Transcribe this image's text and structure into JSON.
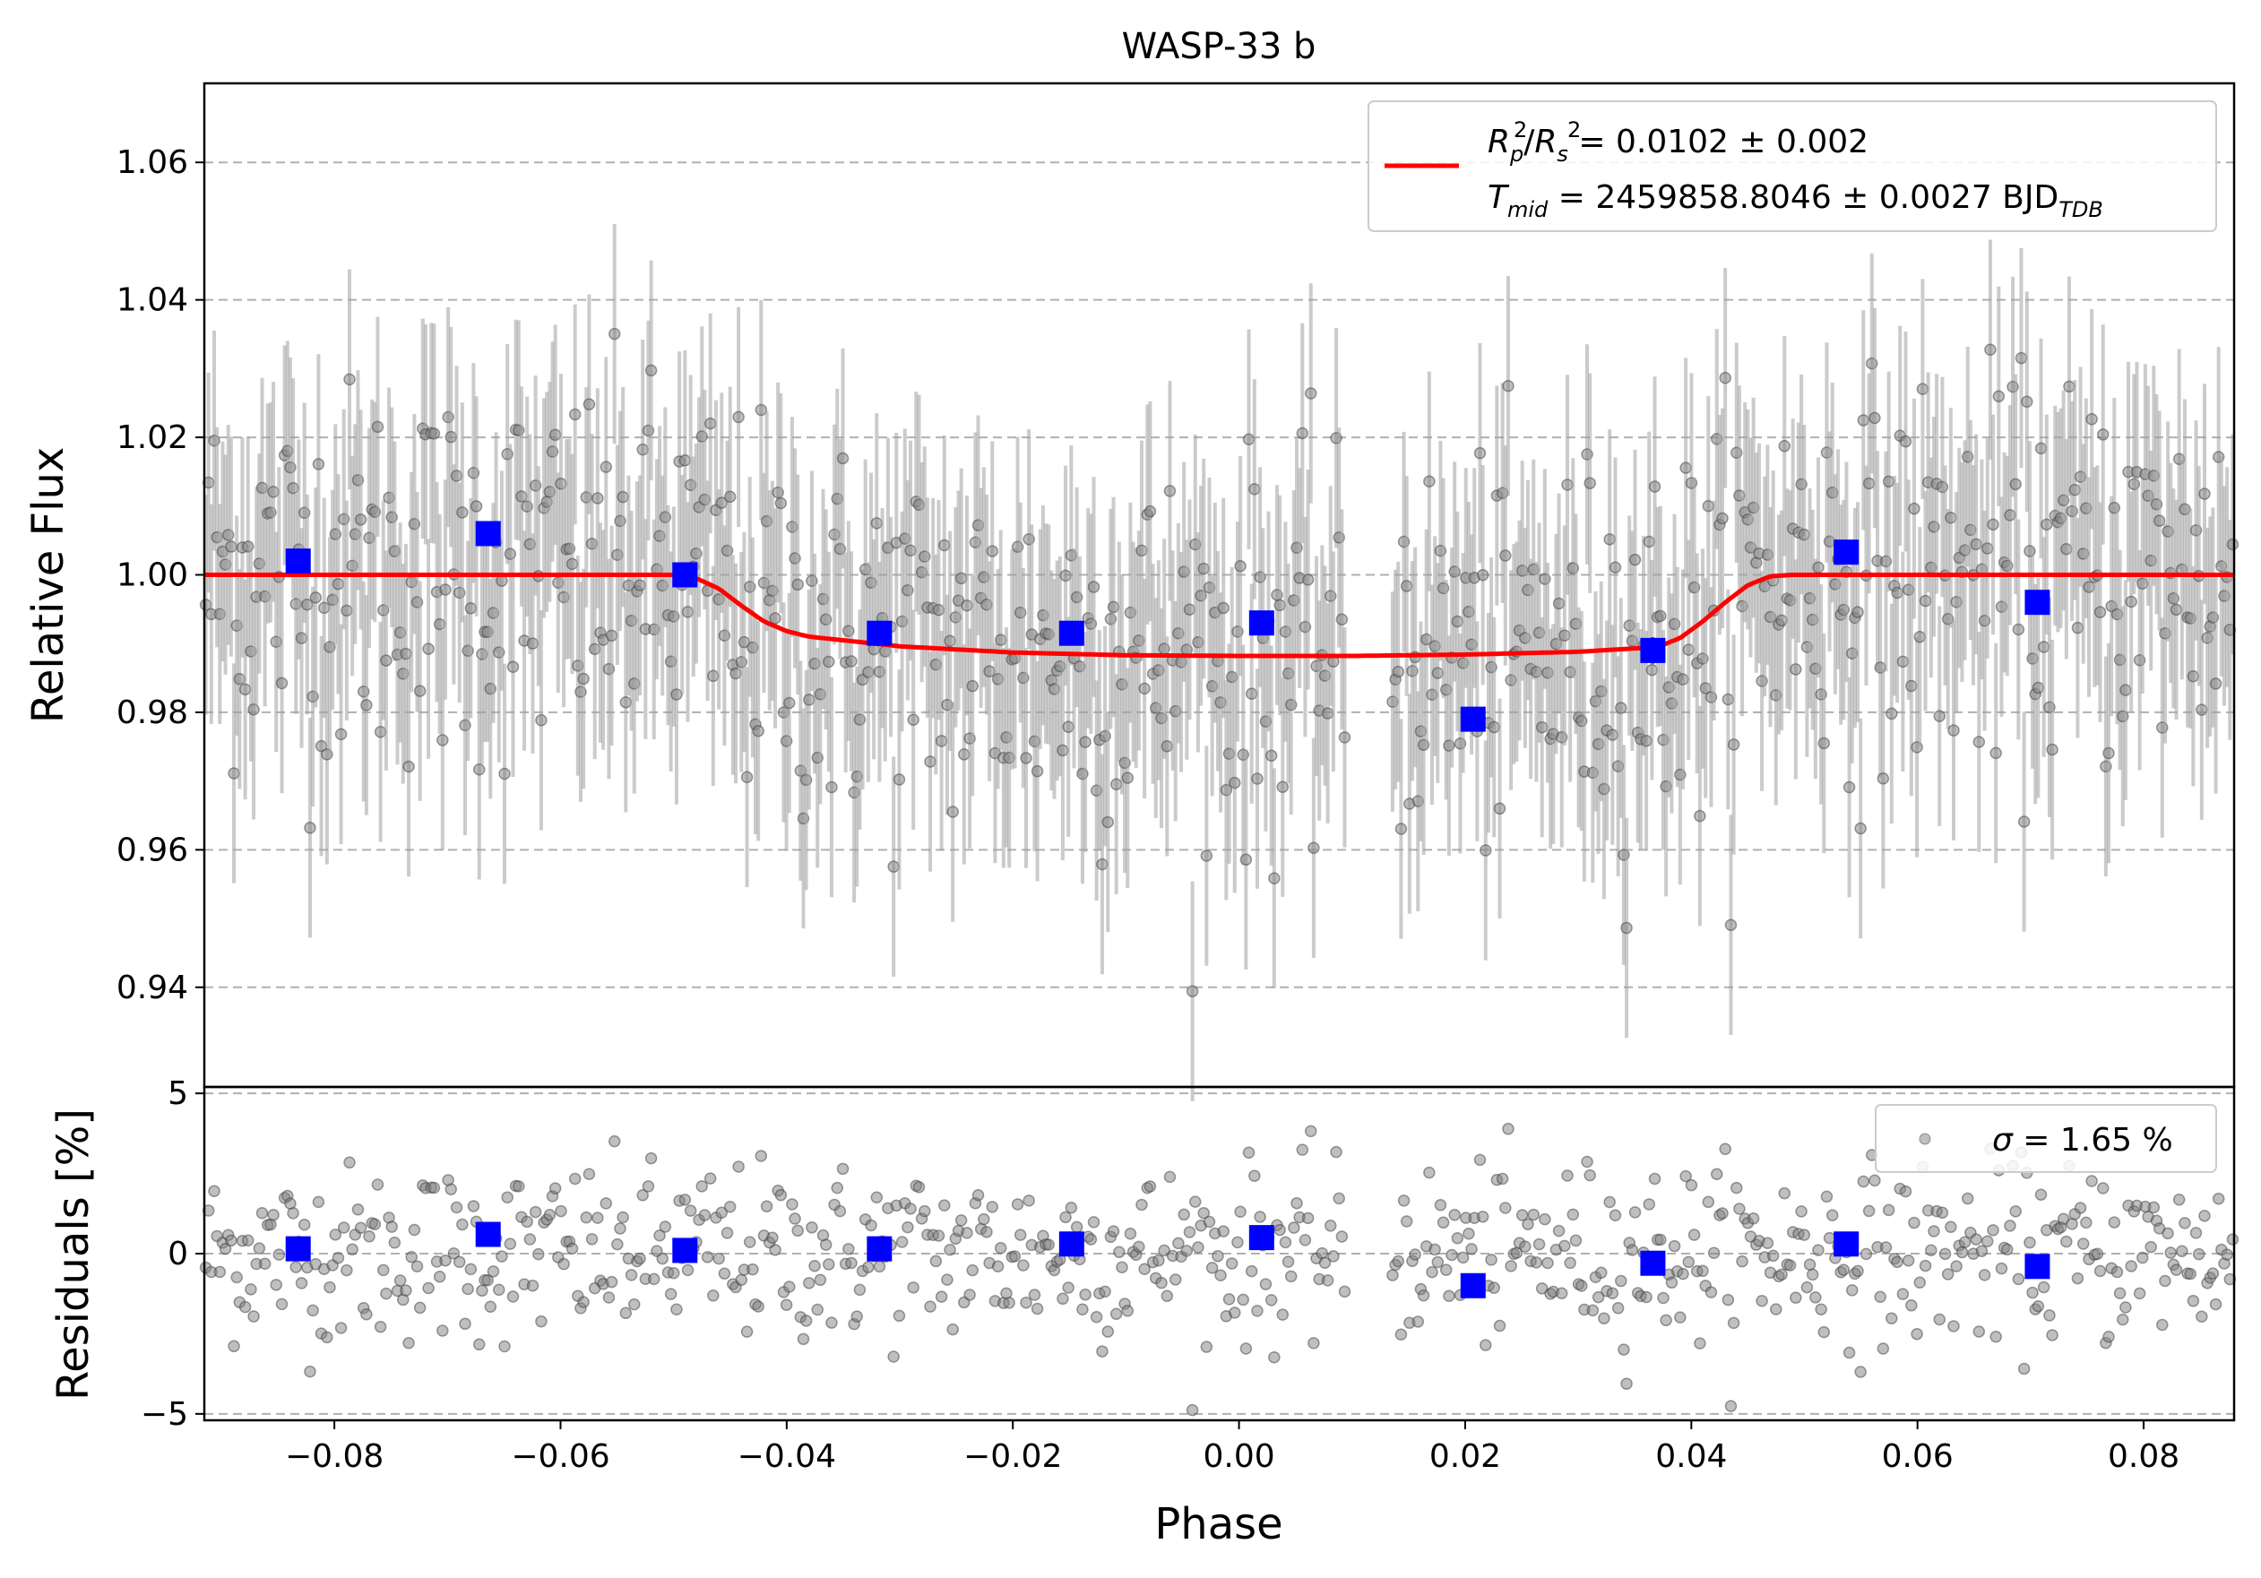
{
  "chart_data": [
    {
      "type": "scatter",
      "title": "WASP-33 b",
      "xlabel": "",
      "ylabel": "Relative Flux",
      "xlim": [
        -0.0915,
        0.088
      ],
      "ylim": [
        0.9255,
        1.0715
      ],
      "y_ticks": [
        0.94,
        0.96,
        0.98,
        1.0,
        1.02,
        1.04,
        1.06
      ],
      "y_tick_labels": [
        "0.94",
        "0.96",
        "0.98",
        "1.00",
        "1.02",
        "1.04",
        "1.06"
      ],
      "grid": "horizontal dashed",
      "legend_placement": "top-right",
      "legend": {
        "line_prefix": "R",
        "line_rest": " = 0.0102 ± 0.002",
        "line2_prefix": "T",
        "line2_sub": "mid",
        "line2_rest": " = 2459858.8046 ± 0.0027 BJD",
        "line2_sub2": "TDB"
      },
      "gap": [
        0.0095,
        0.0135
      ],
      "raw_scatter_sigma": 0.0165,
      "raw_errorbar": 0.016,
      "model": {
        "name": "transit model",
        "color": "#ff0000",
        "x": [
          -0.0915,
          -0.0495,
          -0.048,
          -0.046,
          -0.044,
          -0.042,
          -0.04,
          -0.038,
          -0.03,
          -0.02,
          -0.01,
          0.0,
          0.01,
          0.02,
          0.03,
          0.037,
          0.039,
          0.041,
          0.043,
          0.045,
          0.047,
          0.049,
          0.088
        ],
        "y": [
          1.0,
          1.0,
          0.9995,
          0.998,
          0.9955,
          0.9932,
          0.9918,
          0.991,
          0.9896,
          0.9887,
          0.9883,
          0.9882,
          0.9882,
          0.9884,
          0.9888,
          0.9895,
          0.9908,
          0.9932,
          0.996,
          0.9985,
          0.9998,
          1.0,
          1.0
        ]
      },
      "binned": {
        "name": "binned",
        "color": "#0000ff",
        "x": [
          -0.0832,
          -0.0664,
          -0.049,
          -0.0318,
          -0.0148,
          0.002,
          0.0207,
          0.0366,
          0.0537,
          0.0706
        ],
        "y": [
          1.002,
          1.006,
          1.0,
          0.9915,
          0.9915,
          0.993,
          0.979,
          0.989,
          1.0033,
          0.996
        ],
        "err": [
          0.0014,
          0.0018,
          0.0017,
          0.0014,
          0.0016,
          0.0015,
          0.0016,
          0.0019,
          0.0014,
          0.0016
        ]
      }
    },
    {
      "type": "scatter",
      "title": "",
      "xlabel": "Phase",
      "ylabel": "Residuals [%]",
      "xlim": [
        -0.0915,
        0.088
      ],
      "ylim": [
        -5.2,
        5.2
      ],
      "x_ticks": [
        -0.08,
        -0.06,
        -0.04,
        -0.02,
        0.0,
        0.02,
        0.04,
        0.06,
        0.08
      ],
      "x_tick_labels": [
        "−0.08",
        "−0.06",
        "−0.04",
        "−0.02",
        "0.00",
        "0.02",
        "0.04",
        "0.06",
        "0.08"
      ],
      "y_ticks": [
        -5,
        0,
        5
      ],
      "y_tick_labels": [
        "−5",
        "0",
        "5"
      ],
      "grid": "horizontal dashed",
      "legend_placement": "top-right",
      "legend": {
        "text": " = 1.65 %",
        "symbol": "σ"
      },
      "binned": {
        "name": "binned residuals",
        "color": "#0000ff",
        "x": [
          -0.0832,
          -0.0664,
          -0.049,
          -0.0318,
          -0.0148,
          0.002,
          0.0207,
          0.0366,
          0.0537,
          0.0706
        ],
        "y": [
          0.15,
          0.6,
          0.1,
          0.15,
          0.3,
          0.5,
          -1.0,
          -0.3,
          0.3,
          -0.4
        ]
      }
    }
  ]
}
